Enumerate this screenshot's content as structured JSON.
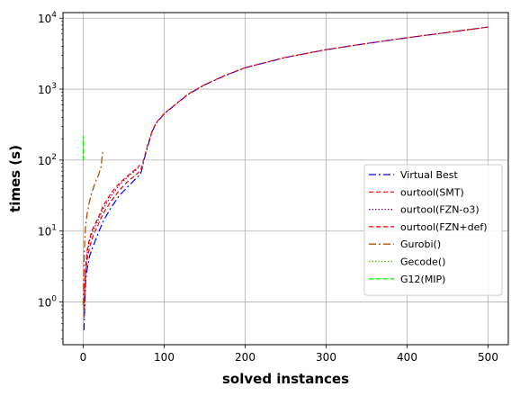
{
  "chart_data": {
    "type": "line",
    "title": "",
    "xlabel": "solved instances",
    "ylabel": "times (s)",
    "xlim": [
      -25,
      525
    ],
    "ylim": [
      0.25,
      12000
    ],
    "yscale": "log",
    "grid": true,
    "legend_position": "center-right",
    "x_ticks": [
      0,
      100,
      200,
      300,
      400,
      500
    ],
    "x_tick_labels": [
      "0",
      "100",
      "200",
      "300",
      "400",
      "500"
    ],
    "y_ticks": [
      1,
      10,
      100,
      1000,
      10000
    ],
    "y_tick_labels": [
      "10^0",
      "10^1",
      "10^2",
      "10^3",
      "10^4"
    ],
    "series": [
      {
        "name": "Virtual Best",
        "color": "#0000ff",
        "dash": "8,3,2,3",
        "width": 1.2,
        "x": [
          1,
          2,
          3,
          5,
          8,
          12,
          18,
          25,
          35,
          45,
          55,
          65,
          70,
          72,
          75,
          80,
          85,
          90,
          100,
          115,
          130,
          150,
          175,
          200,
          250,
          300,
          350,
          400,
          450,
          500
        ],
        "y": [
          0.4,
          1,
          2,
          3,
          4.5,
          6,
          9,
          14,
          22,
          32,
          42,
          55,
          62,
          70,
          100,
          160,
          250,
          330,
          450,
          620,
          850,
          1150,
          1550,
          2000,
          2800,
          3600,
          4400,
          5300,
          6300,
          7500
        ]
      },
      {
        "name": "ourtool(SMT)",
        "color": "#ff0000",
        "dash": "5,3",
        "width": 1.2,
        "x": [
          1,
          2,
          3,
          5,
          8,
          12,
          18,
          25,
          35,
          45,
          55,
          65,
          70,
          72,
          75,
          80,
          85,
          90,
          100,
          115,
          130,
          150,
          175,
          200,
          250,
          300,
          350,
          400,
          450,
          500
        ],
        "y": [
          0.6,
          1.5,
          2.5,
          4,
          6,
          8.5,
          12,
          18,
          27,
          38,
          50,
          62,
          70,
          78,
          105,
          170,
          255,
          335,
          455,
          625,
          860,
          1160,
          1560,
          2010,
          2810,
          3610,
          4410,
          5310,
          6310,
          7510
        ]
      },
      {
        "name": "ourtool(FZN-o3)",
        "color": "#800080",
        "dash": "1.5,2",
        "width": 1.2,
        "x": [
          1,
          2,
          3,
          5,
          8,
          12,
          18,
          25,
          35,
          45,
          55,
          65,
          70
        ],
        "y": [
          0.7,
          1.8,
          3,
          5,
          7.5,
          10,
          14,
          21,
          32,
          45,
          58,
          72,
          82
        ]
      },
      {
        "name": "ourtool(FZN+def)",
        "color": "#ff0000",
        "dash": "5,3",
        "width": 1.2,
        "x": [
          1,
          2,
          3,
          5,
          8,
          12,
          18,
          25,
          35,
          45,
          55,
          65,
          70
        ],
        "y": [
          0.8,
          2,
          3.3,
          5.5,
          8,
          11,
          15,
          23,
          35,
          48,
          60,
          75,
          85
        ]
      },
      {
        "name": "Gurobi()",
        "color": "#b05000",
        "dash": "8,3,2,3",
        "width": 1.3,
        "x": [
          0,
          1,
          2,
          3,
          5,
          7,
          10,
          13,
          16,
          19,
          22,
          24
        ],
        "y": [
          0.9,
          4,
          8,
          12,
          18,
          24,
          33,
          42,
          52,
          62,
          80,
          130
        ]
      },
      {
        "name": "Gecode()",
        "color": "#40c000",
        "dash": "1.5,2",
        "width": 1.3,
        "x": [
          0,
          0
        ],
        "y": [
          100,
          200
        ]
      },
      {
        "name": "G12(MIP)",
        "color": "#00ff00",
        "dash": "5,3",
        "width": 1.3,
        "x": [
          0,
          0
        ],
        "y": [
          100,
          220
        ]
      }
    ]
  }
}
